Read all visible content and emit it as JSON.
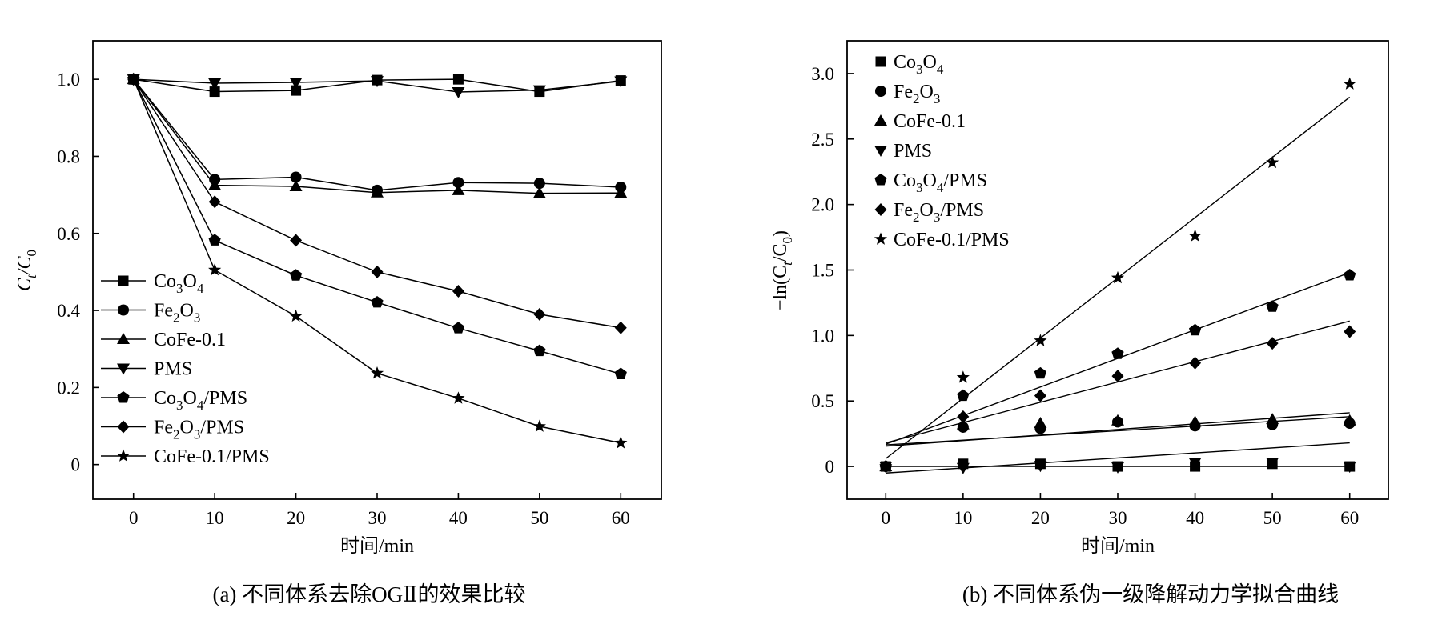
{
  "chart_data": [
    {
      "type": "line",
      "panel": "a",
      "caption": "(a) 不同体系去除OGⅡ的效果比较",
      "xlabel": "时间/min",
      "ylabel_main": "C",
      "ylabel_sub1": "t",
      "ylabel_sep": "/C",
      "ylabel_sub2": "0",
      "xlim": [
        -5,
        65
      ],
      "ylim": [
        -0.09,
        1.1
      ],
      "xticks": [
        {
          "v": 0,
          "label": "0"
        },
        {
          "v": 10,
          "label": "10"
        },
        {
          "v": 20,
          "label": "20"
        },
        {
          "v": 30,
          "label": "30"
        },
        {
          "v": 40,
          "label": "40"
        },
        {
          "v": 50,
          "label": "50"
        },
        {
          "v": 60,
          "label": "60"
        }
      ],
      "yticks": [
        {
          "v": 0,
          "label": "0"
        },
        {
          "v": 0.2,
          "label": "0.2"
        },
        {
          "v": 0.4,
          "label": "0.4"
        },
        {
          "v": 0.6,
          "label": "0.6"
        },
        {
          "v": 0.8,
          "label": "0.8"
        },
        {
          "v": 1.0,
          "label": "1.0"
        }
      ],
      "legend_position": "bottom-left",
      "x": [
        0,
        10,
        20,
        30,
        40,
        50,
        60
      ],
      "series": [
        {
          "key": "co3o4",
          "marker": "square",
          "name": [
            {
              "t": "Co"
            },
            {
              "t": "3",
              "sub": true
            },
            {
              "t": "O"
            },
            {
              "t": "4",
              "sub": true
            }
          ],
          "values": [
            1.0,
            0.968,
            0.971,
            0.998,
            1.0,
            0.968,
            0.997
          ]
        },
        {
          "key": "fe2o3",
          "marker": "circle",
          "name": [
            {
              "t": "Fe"
            },
            {
              "t": "2",
              "sub": true
            },
            {
              "t": "O"
            },
            {
              "t": "3",
              "sub": true
            }
          ],
          "values": [
            1.0,
            0.74,
            0.746,
            0.712,
            0.732,
            0.73,
            0.72
          ]
        },
        {
          "key": "cofe",
          "marker": "triangle-up",
          "name": [
            {
              "t": "CoFe-0.1"
            }
          ],
          "values": [
            1.0,
            0.725,
            0.722,
            0.706,
            0.712,
            0.704,
            0.705
          ]
        },
        {
          "key": "pms",
          "marker": "triangle-down",
          "name": [
            {
              "t": "PMS"
            }
          ],
          "values": [
            1.0,
            0.99,
            0.992,
            0.996,
            0.967,
            0.972,
            0.995
          ]
        },
        {
          "key": "co3o4pms",
          "marker": "pentagon",
          "name": [
            {
              "t": "Co"
            },
            {
              "t": "3",
              "sub": true
            },
            {
              "t": "O"
            },
            {
              "t": "4",
              "sub": true
            },
            {
              "t": "/PMS"
            }
          ],
          "values": [
            1.0,
            0.582,
            0.491,
            0.421,
            0.354,
            0.295,
            0.235
          ]
        },
        {
          "key": "fe2o3pms",
          "marker": "diamond",
          "name": [
            {
              "t": "Fe"
            },
            {
              "t": "2",
              "sub": true
            },
            {
              "t": "O"
            },
            {
              "t": "3",
              "sub": true
            },
            {
              "t": "/PMS"
            }
          ],
          "values": [
            1.0,
            0.682,
            0.582,
            0.5,
            0.45,
            0.39,
            0.355
          ]
        },
        {
          "key": "cofepms",
          "marker": "star",
          "name": [
            {
              "t": "CoFe-0.1/PMS"
            }
          ],
          "values": [
            1.0,
            0.505,
            0.385,
            0.237,
            0.172,
            0.099,
            0.056
          ]
        }
      ]
    },
    {
      "type": "scatter",
      "panel": "b",
      "caption": "(b) 不同体系伪一级降解动力学拟合曲线",
      "xlabel": "时间/min",
      "ylabel_pre": "−ln(C",
      "ylabel_sub1": "t",
      "ylabel_mid": "/C",
      "ylabel_sub2": "0",
      "ylabel_post": ")",
      "xlim": [
        -5,
        65
      ],
      "ylim": [
        -0.25,
        3.25
      ],
      "xticks": [
        {
          "v": 0,
          "label": "0"
        },
        {
          "v": 10,
          "label": "10"
        },
        {
          "v": 20,
          "label": "20"
        },
        {
          "v": 30,
          "label": "30"
        },
        {
          "v": 40,
          "label": "40"
        },
        {
          "v": 50,
          "label": "50"
        },
        {
          "v": 60,
          "label": "60"
        }
      ],
      "yticks": [
        {
          "v": 0,
          "label": "0"
        },
        {
          "v": 0.5,
          "label": "0.5"
        },
        {
          "v": 1.0,
          "label": "1.0"
        },
        {
          "v": 1.5,
          "label": "1.5"
        },
        {
          "v": 2.0,
          "label": "2.0"
        },
        {
          "v": 2.5,
          "label": "2.5"
        },
        {
          "v": 3.0,
          "label": "3.0"
        }
      ],
      "legend_position": "top-left",
      "x": [
        0,
        10,
        20,
        30,
        40,
        50,
        60
      ],
      "series": [
        {
          "key": "co3o4",
          "marker": "square",
          "name": [
            {
              "t": "Co"
            },
            {
              "t": "3",
              "sub": true
            },
            {
              "t": "O"
            },
            {
              "t": "4",
              "sub": true
            }
          ],
          "values": [
            0,
            0.02,
            0.02,
            0.0,
            0.0,
            0.02,
            0.0
          ],
          "fit": [
            0.0,
            0.0
          ]
        },
        {
          "key": "fe2o3",
          "marker": "circle",
          "name": [
            {
              "t": "Fe"
            },
            {
              "t": "2",
              "sub": true
            },
            {
              "t": "O"
            },
            {
              "t": "3",
              "sub": true
            }
          ],
          "values": [
            0,
            0.3,
            0.29,
            0.34,
            0.31,
            0.32,
            0.33
          ],
          "fit": [
            0.165,
            0.38
          ]
        },
        {
          "key": "cofe",
          "marker": "triangle-up",
          "name": [
            {
              "t": "CoFe-0.1"
            }
          ],
          "values": [
            0,
            0.32,
            0.33,
            0.35,
            0.34,
            0.36,
            0.35
          ],
          "fit": [
            0.155,
            0.41
          ]
        },
        {
          "key": "pms",
          "marker": "triangle-down",
          "name": [
            {
              "t": "PMS"
            }
          ],
          "values": [
            0,
            -0.01,
            0.005,
            -0.005,
            0.03,
            0.03,
            0.0
          ],
          "fit": [
            -0.05,
            0.18
          ]
        },
        {
          "key": "co3o4pms",
          "marker": "pentagon",
          "name": [
            {
              "t": "Co"
            },
            {
              "t": "3",
              "sub": true
            },
            {
              "t": "O"
            },
            {
              "t": "4",
              "sub": true
            },
            {
              "t": "/PMS"
            }
          ],
          "values": [
            0,
            0.54,
            0.71,
            0.86,
            1.04,
            1.22,
            1.46
          ],
          "fit": [
            0.17,
            1.48
          ]
        },
        {
          "key": "fe2o3pms",
          "marker": "diamond",
          "name": [
            {
              "t": "Fe"
            },
            {
              "t": "2",
              "sub": true
            },
            {
              "t": "O"
            },
            {
              "t": "3",
              "sub": true
            },
            {
              "t": "/PMS"
            }
          ],
          "values": [
            0,
            0.38,
            0.54,
            0.69,
            0.79,
            0.94,
            1.03
          ],
          "fit": [
            0.18,
            1.11
          ]
        },
        {
          "key": "cofepms",
          "marker": "star",
          "name": [
            {
              "t": "CoFe-0.1/PMS"
            }
          ],
          "values": [
            0,
            0.68,
            0.96,
            1.44,
            1.76,
            2.32,
            2.92
          ],
          "fit": [
            0.06,
            2.82
          ]
        }
      ]
    }
  ]
}
